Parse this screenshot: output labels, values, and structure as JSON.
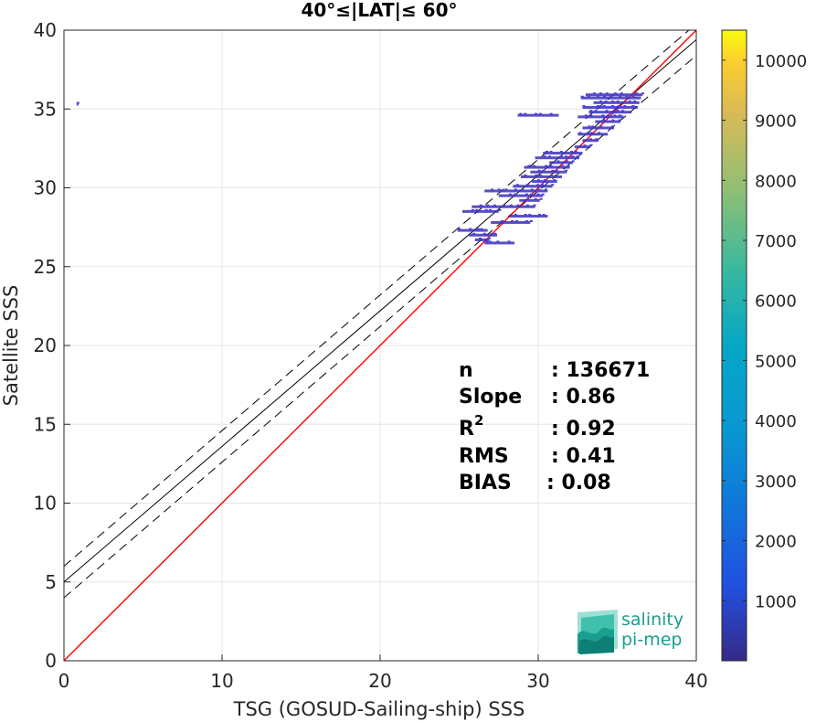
{
  "chart_data": {
    "type": "scatter",
    "title": "40°≤|LAT|≤ 60°",
    "xlabel": "TSG (GOSUD-Sailing-ship) SSS",
    "ylabel": "Satellite SSS",
    "xlim": [
      0,
      40
    ],
    "ylim": [
      0,
      40
    ],
    "xticks": [
      0,
      10,
      20,
      30,
      40
    ],
    "yticks": [
      0,
      5,
      10,
      15,
      20,
      25,
      30,
      35,
      40
    ],
    "grid": true,
    "colorbar": {
      "range": [
        0,
        10500
      ],
      "ticks": [
        1000,
        2000,
        3000,
        4000,
        5000,
        6000,
        7000,
        8000,
        9000,
        10000
      ],
      "colormap": "parula"
    },
    "lines": {
      "identity": {
        "slope": 1,
        "intercept": 0,
        "color": "#ff0000"
      },
      "regression": {
        "slope": 0.86,
        "intercept": 5.0,
        "color": "#000000"
      },
      "regression_band_offset": 1.0
    },
    "density_segments": [
      {
        "y": 35.3,
        "x0": 0.8,
        "x1": 0.9
      },
      {
        "y": 35.9,
        "x0": 33.0,
        "x1": 36.6
      },
      {
        "y": 35.7,
        "x0": 32.7,
        "x1": 36.5
      },
      {
        "y": 35.4,
        "x0": 33.5,
        "x1": 36.4
      },
      {
        "y": 35.1,
        "x0": 32.8,
        "x1": 36.3
      },
      {
        "y": 34.8,
        "x0": 33.2,
        "x1": 35.9
      },
      {
        "y": 34.5,
        "x0": 32.5,
        "x1": 35.4
      },
      {
        "y": 34.2,
        "x0": 33.6,
        "x1": 35.2
      },
      {
        "y": 34.6,
        "x0": 28.7,
        "x1": 31.3
      },
      {
        "y": 33.8,
        "x0": 32.8,
        "x1": 34.8
      },
      {
        "y": 33.4,
        "x0": 32.5,
        "x1": 34.4
      },
      {
        "y": 33.0,
        "x0": 32.8,
        "x1": 33.8
      },
      {
        "y": 32.6,
        "x0": 32.3,
        "x1": 33.3
      },
      {
        "y": 32.2,
        "x0": 30.3,
        "x1": 32.8
      },
      {
        "y": 31.9,
        "x0": 29.8,
        "x1": 32.6
      },
      {
        "y": 31.6,
        "x0": 30.7,
        "x1": 32.2
      },
      {
        "y": 31.3,
        "x0": 29.1,
        "x1": 32.0
      },
      {
        "y": 31.0,
        "x0": 29.5,
        "x1": 31.8
      },
      {
        "y": 30.7,
        "x0": 28.9,
        "x1": 31.5
      },
      {
        "y": 30.4,
        "x0": 29.6,
        "x1": 31.2
      },
      {
        "y": 30.1,
        "x0": 28.4,
        "x1": 30.9
      },
      {
        "y": 29.8,
        "x0": 26.6,
        "x1": 30.6
      },
      {
        "y": 29.5,
        "x0": 27.5,
        "x1": 30.3
      },
      {
        "y": 29.2,
        "x0": 28.8,
        "x1": 30.1
      },
      {
        "y": 28.8,
        "x0": 25.8,
        "x1": 29.8
      },
      {
        "y": 28.5,
        "x0": 25.2,
        "x1": 27.5
      },
      {
        "y": 28.2,
        "x0": 28.2,
        "x1": 30.6
      },
      {
        "y": 27.8,
        "x0": 27.0,
        "x1": 29.5
      },
      {
        "y": 27.3,
        "x0": 24.9,
        "x1": 26.8
      },
      {
        "y": 27.0,
        "x0": 25.6,
        "x1": 27.4
      },
      {
        "y": 26.7,
        "x0": 26.0,
        "x1": 26.9
      },
      {
        "y": 26.5,
        "x0": 26.6,
        "x1": 28.5
      }
    ]
  },
  "stats": [
    {
      "label": "n",
      "value": ": 136671"
    },
    {
      "label": "Slope",
      "value": ": 0.86"
    },
    {
      "label": "R",
      "sup": "2",
      "value": ": 0.92"
    },
    {
      "label": "RMS",
      "value": ": 0.41"
    },
    {
      "label": "BIAS",
      "value": ": 0.08"
    }
  ],
  "logo": {
    "line1": "salinity",
    "line2": "pi-mep"
  }
}
